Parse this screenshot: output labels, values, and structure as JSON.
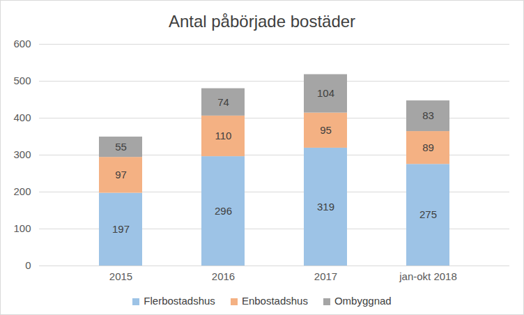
{
  "chart_data": {
    "type": "bar",
    "title": "Antal påbörjade bostäder",
    "stacked": true,
    "categories": [
      "2015",
      "2016",
      "2017",
      "jan-okt 2018"
    ],
    "series": [
      {
        "name": "Flerbostadshus",
        "color": "#9dc3e6",
        "values": [
          197,
          296,
          319,
          275
        ]
      },
      {
        "name": "Enbostadshus",
        "color": "#f4b183",
        "values": [
          97,
          110,
          95,
          89
        ]
      },
      {
        "name": "Ombyggnad",
        "color": "#a5a5a5",
        "values": [
          55,
          74,
          104,
          83
        ]
      }
    ],
    "ylim": [
      0,
      600
    ],
    "yticks": [
      0,
      100,
      200,
      300,
      400,
      500,
      600
    ],
    "grid": true,
    "data_labels": true,
    "legend": "bottom"
  }
}
